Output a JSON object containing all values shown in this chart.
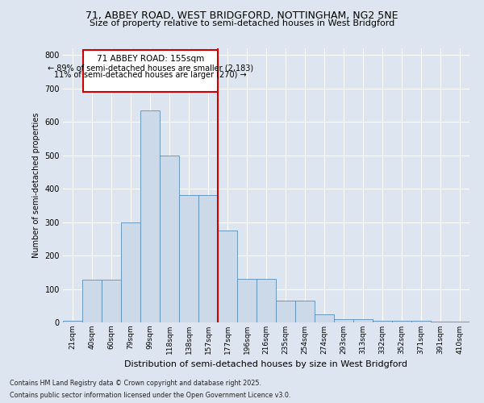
{
  "title1": "71, ABBEY ROAD, WEST BRIDGFORD, NOTTINGHAM, NG2 5NE",
  "title2": "Size of property relative to semi-detached houses in West Bridgford",
  "xlabel": "Distribution of semi-detached houses by size in West Bridgford",
  "ylabel": "Number of semi-detached properties",
  "bin_labels": [
    "21sqm",
    "40sqm",
    "60sqm",
    "79sqm",
    "99sqm",
    "118sqm",
    "138sqm",
    "157sqm",
    "177sqm",
    "196sqm",
    "216sqm",
    "235sqm",
    "254sqm",
    "274sqm",
    "293sqm",
    "313sqm",
    "332sqm",
    "352sqm",
    "371sqm",
    "391sqm",
    "410sqm"
  ],
  "bar_heights": [
    5,
    128,
    128,
    300,
    635,
    500,
    380,
    380,
    275,
    130,
    130,
    65,
    65,
    25,
    10,
    10,
    5,
    5,
    5,
    3,
    2
  ],
  "bar_color": "#ccd9e8",
  "bar_edge_color": "#5b8db8",
  "vline_color": "#cc0000",
  "property_label": "71 ABBEY ROAD: 155sqm",
  "annotation_line1": "← 89% of semi-detached houses are smaller (2,183)",
  "annotation_line2": "11% of semi-detached houses are larger (270) →",
  "annotation_box_color": "#cc0000",
  "ylim": [
    0,
    820
  ],
  "yticks": [
    0,
    100,
    200,
    300,
    400,
    500,
    600,
    700,
    800
  ],
  "footnote1": "Contains HM Land Registry data © Crown copyright and database right 2025.",
  "footnote2": "Contains public sector information licensed under the Open Government Licence v3.0.",
  "bg_color": "#dde6f0",
  "plot_bg_color": "#dde6f0"
}
